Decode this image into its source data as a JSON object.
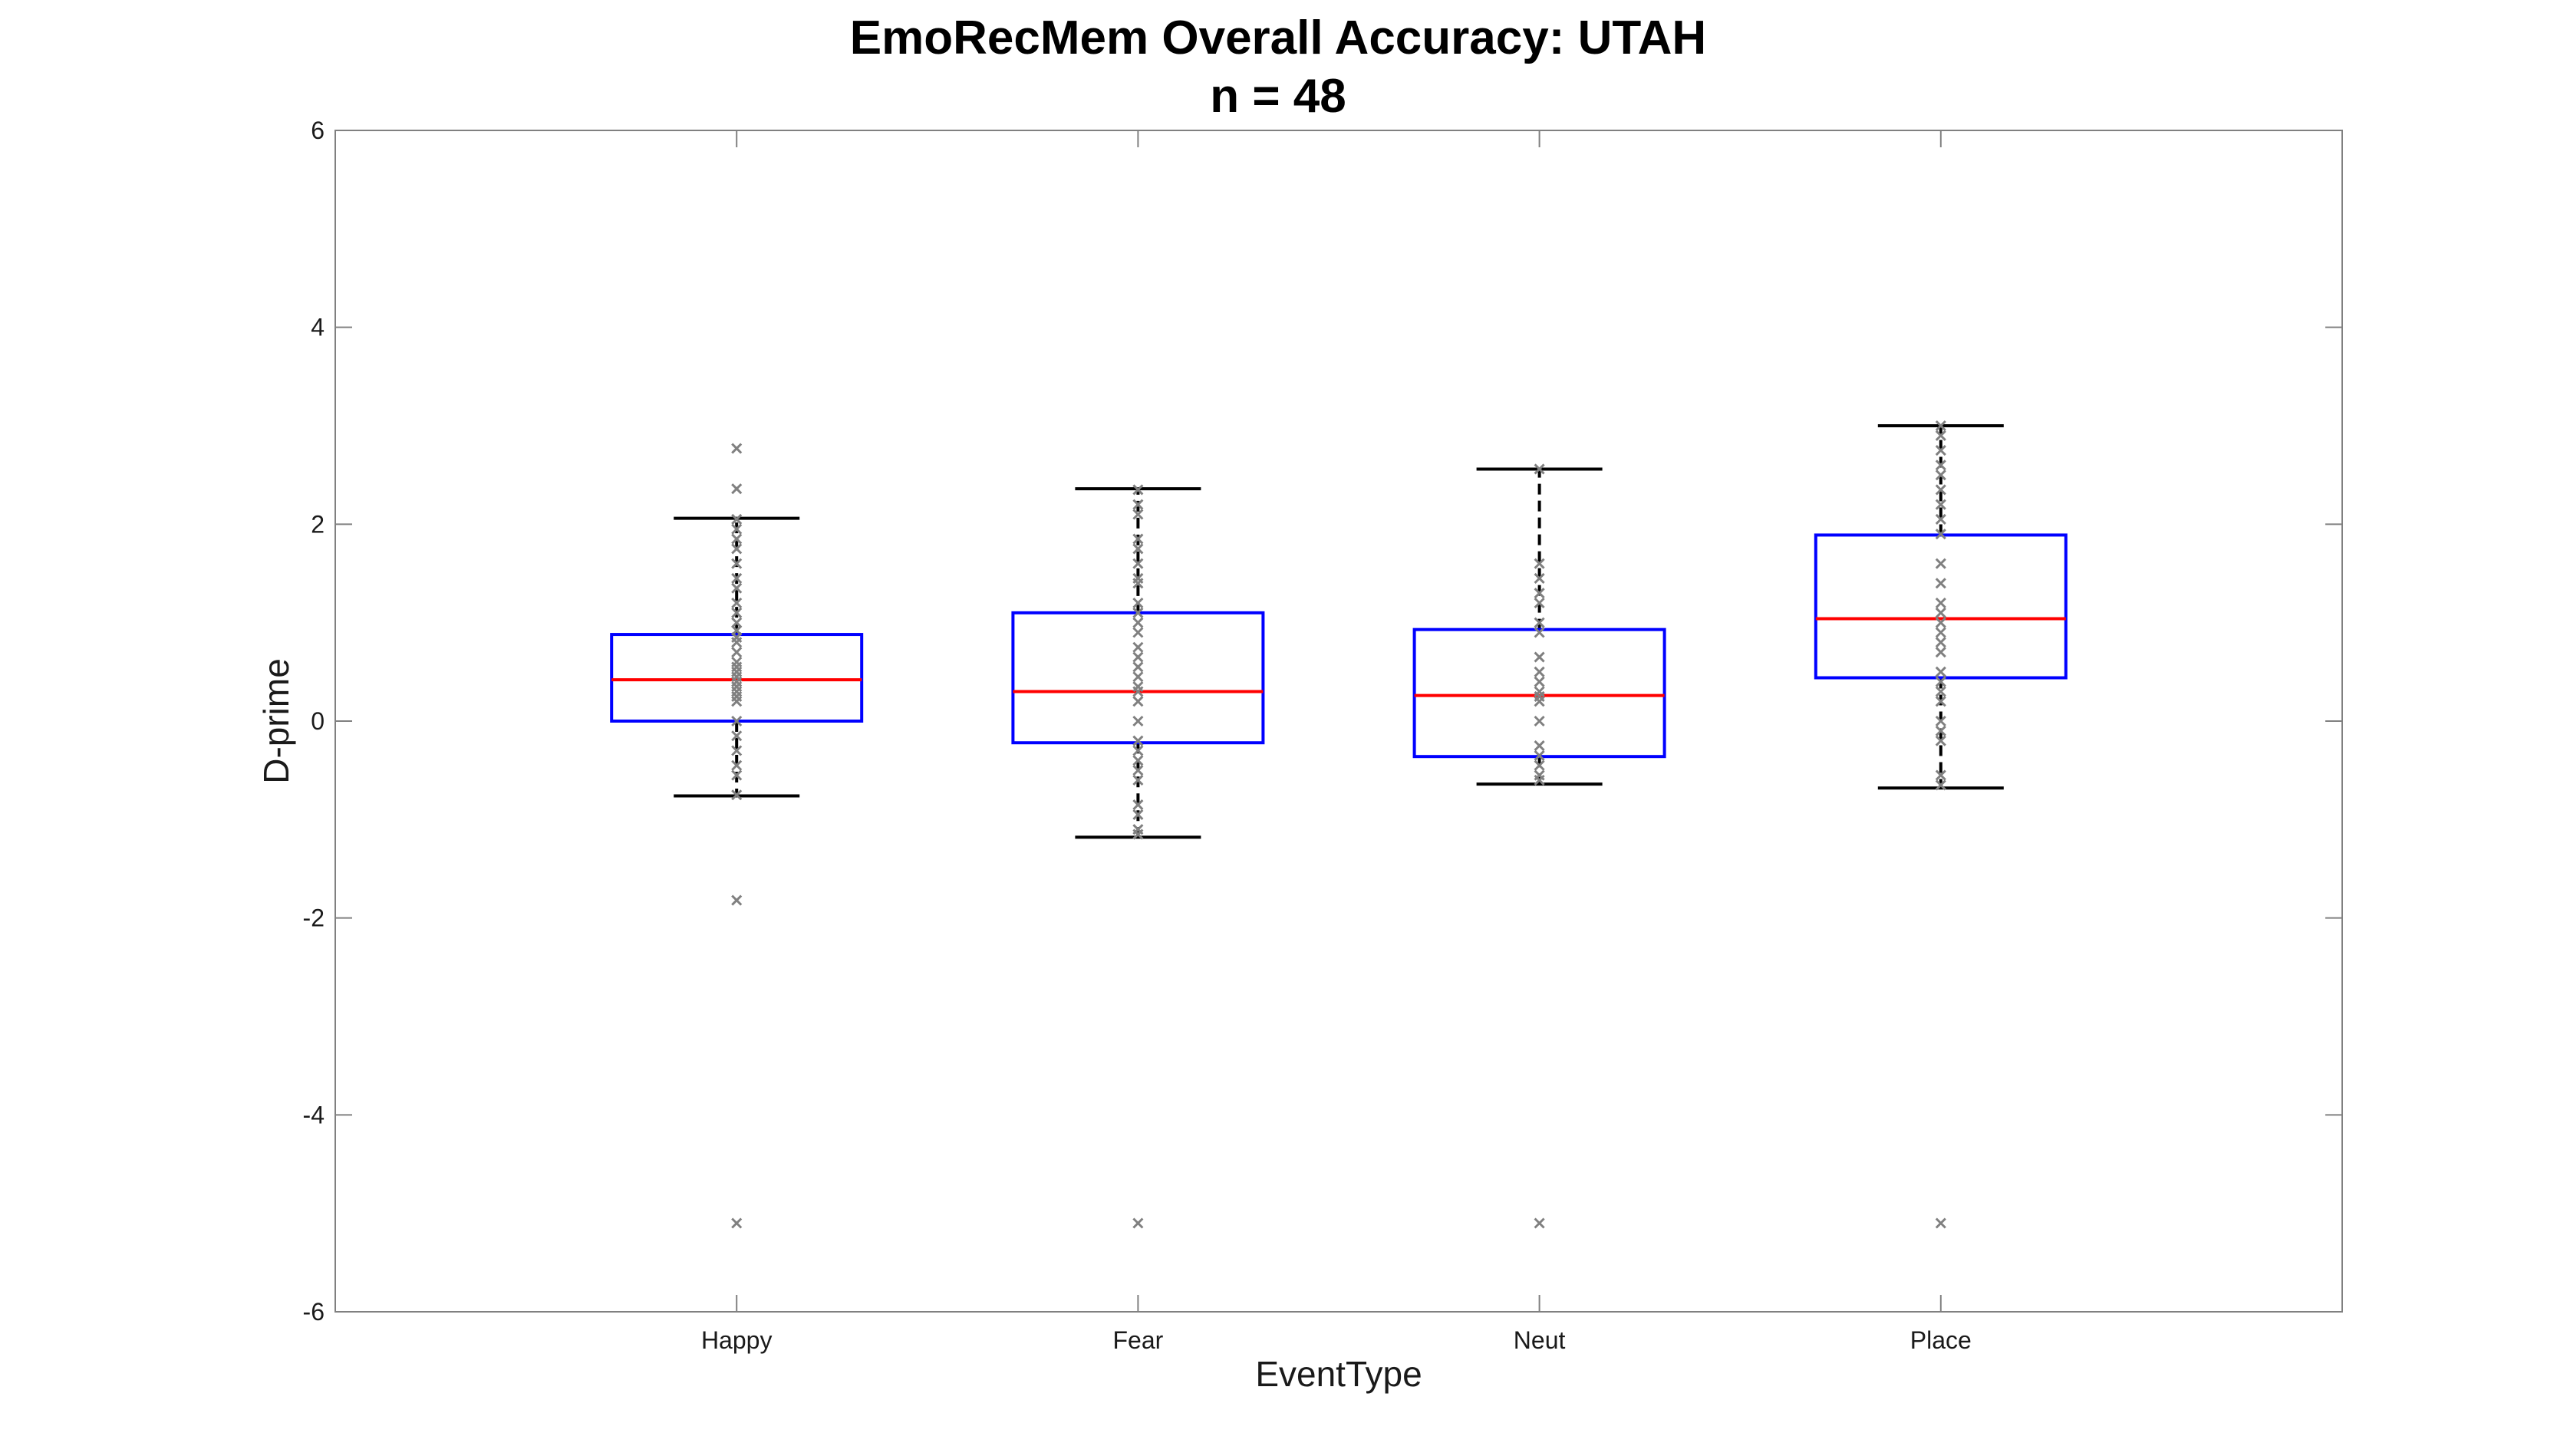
{
  "chart_data": {
    "type": "boxplot",
    "title": "EmoRecMem Overall Accuracy: UTAH",
    "subtitle": "n = 48",
    "xlabel": "EventType",
    "ylabel": "D-prime",
    "ylim": [
      -6,
      6
    ],
    "yticks": [
      -6,
      -4,
      -2,
      0,
      2,
      4,
      6
    ],
    "ytick_labels": [
      "-6",
      "-4",
      "-2",
      "0",
      "2",
      "4",
      "6"
    ],
    "categories": [
      "Happy",
      "Fear",
      "Neut",
      "Place"
    ],
    "grid": false,
    "colors": {
      "box": "#0000ff",
      "median": "#ff0000",
      "whisker": "#000000",
      "points": "#808080",
      "axes": "#808080"
    },
    "boxes": [
      {
        "category": "Happy",
        "whisker_low": -0.76,
        "q1": 0.0,
        "median": 0.42,
        "q3": 0.88,
        "whisker_high": 2.06,
        "points": [
          2.77,
          2.36,
          2.05,
          1.95,
          1.85,
          1.75,
          1.6,
          1.45,
          1.35,
          1.2,
          1.1,
          1.0,
          0.92,
          0.85,
          0.8,
          0.7,
          0.6,
          0.55,
          0.5,
          0.45,
          0.4,
          0.35,
          0.3,
          0.25,
          0.2,
          0.0,
          -0.15,
          -0.3,
          -0.45,
          -0.55,
          -0.75,
          -1.82,
          -5.1
        ]
      },
      {
        "category": "Fear",
        "whisker_low": -1.18,
        "q1": -0.22,
        "median": 0.3,
        "q3": 1.1,
        "whisker_high": 2.36,
        "points": [
          2.35,
          2.2,
          2.1,
          1.85,
          1.75,
          1.6,
          1.45,
          1.4,
          1.2,
          1.1,
          1.0,
          0.9,
          0.75,
          0.65,
          0.55,
          0.45,
          0.35,
          0.3,
          0.2,
          0.0,
          -0.2,
          -0.3,
          -0.4,
          -0.5,
          -0.6,
          -0.85,
          -0.95,
          -1.1,
          -1.15,
          -5.1
        ]
      },
      {
        "category": "Neut",
        "whisker_low": -0.64,
        "q1": -0.36,
        "median": 0.26,
        "q3": 0.93,
        "whisker_high": 2.56,
        "points": [
          2.56,
          1.6,
          1.45,
          1.3,
          1.2,
          1.0,
          0.9,
          0.65,
          0.5,
          0.4,
          0.3,
          0.25,
          0.2,
          0.0,
          -0.25,
          -0.35,
          -0.45,
          -0.55,
          -0.6,
          -5.1
        ]
      },
      {
        "category": "Place",
        "whisker_low": -0.68,
        "q1": 0.44,
        "median": 1.04,
        "q3": 1.89,
        "whisker_high": 3.0,
        "points": [
          3.0,
          2.9,
          2.75,
          2.6,
          2.5,
          2.35,
          2.2,
          2.05,
          1.9,
          1.6,
          1.4,
          1.2,
          1.1,
          1.0,
          0.9,
          0.8,
          0.7,
          0.5,
          0.4,
          0.3,
          0.2,
          0.0,
          -0.1,
          -0.2,
          -0.55,
          -0.65,
          -5.1
        ]
      }
    ]
  }
}
